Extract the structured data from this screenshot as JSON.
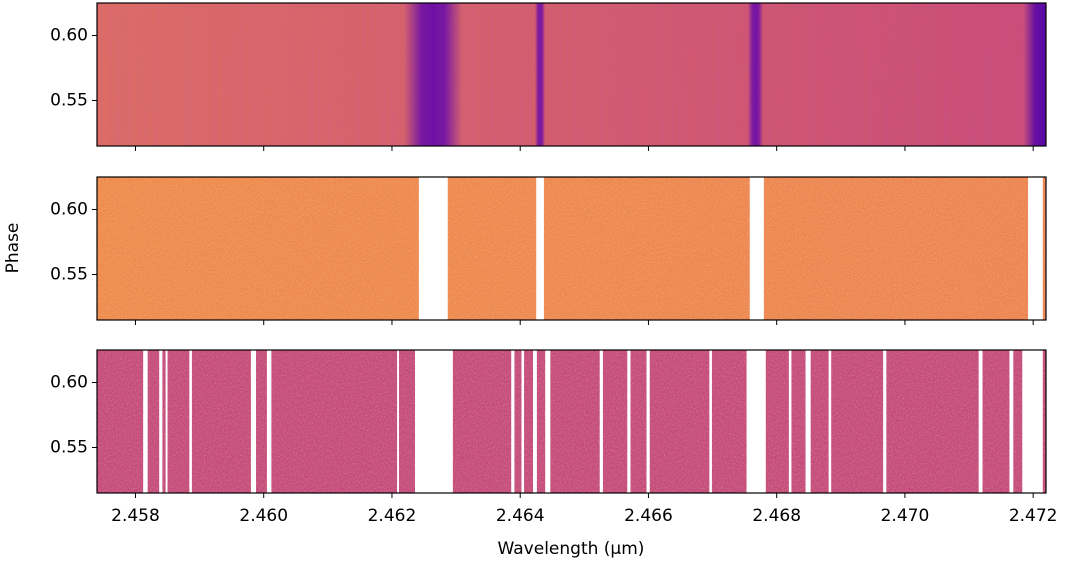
{
  "chart_data": {
    "type": "heatmap",
    "xlabel": "Wavelength (μm)",
    "ylabel": "Phase",
    "xlim": [
      2.4574,
      2.4722
    ],
    "xticks": [
      2.458,
      {
        "value": 2.46,
        "label": "2.460"
      },
      2.462,
      2.464,
      2.466,
      2.468,
      {
        "value": 2.47,
        "label": "2.470"
      },
      2.472
    ],
    "ylim": [
      0.515,
      0.625
    ],
    "yticks": [
      0.55,
      {
        "value": 0.6,
        "label": "0.60"
      }
    ],
    "panels": [
      {
        "colors": [
          "#dc6c66",
          "#c94d78"
        ],
        "absorption_lines": [
          {
            "center": 2.46264,
            "width": 0.00045,
            "color": "#6e10a6"
          },
          {
            "center": 2.46431,
            "width": 8e-05,
            "color": "#7a18a0"
          },
          {
            "center": 2.46767,
            "width": 0.00012,
            "color": "#7414a4"
          },
          {
            "center": 2.47215,
            "width": 0.0003,
            "color": "#5c0aa6"
          }
        ]
      },
      {
        "colors": [
          "#ee8a4c",
          "#ec8350"
        ],
        "masked": [
          [
            2.46242,
            2.46287
          ],
          [
            2.46425,
            2.46437
          ],
          [
            2.46758,
            2.4678
          ],
          [
            2.47192,
            2.47215
          ]
        ]
      },
      {
        "colors": [
          "#c44a7a",
          "#c44a7a"
        ],
        "masked": [
          [
            2.45812,
            2.45819
          ],
          [
            2.45837,
            2.45842
          ],
          [
            2.45847,
            2.4585
          ],
          [
            2.45884,
            2.45888
          ],
          [
            2.4598,
            2.45988
          ],
          [
            2.46005,
            2.46012
          ],
          [
            2.46208,
            2.46211
          ],
          [
            2.46236,
            2.46295
          ],
          [
            2.46386,
            2.46391
          ],
          [
            2.46402,
            2.46406
          ],
          [
            2.4642,
            2.46426
          ],
          [
            2.46439,
            2.46447
          ],
          [
            2.46524,
            2.46529
          ],
          [
            2.46567,
            2.46572
          ],
          [
            2.46597,
            2.46602
          ],
          [
            2.46695,
            2.46699
          ],
          [
            2.46753,
            2.46783
          ],
          [
            2.46819,
            2.46823
          ],
          [
            2.46845,
            2.46853
          ],
          [
            2.46881,
            2.46885
          ],
          [
            2.46966,
            2.46971
          ],
          [
            2.47115,
            2.47121
          ],
          [
            2.47163,
            2.47169
          ],
          [
            2.47183,
            2.47215
          ]
        ]
      }
    ]
  }
}
